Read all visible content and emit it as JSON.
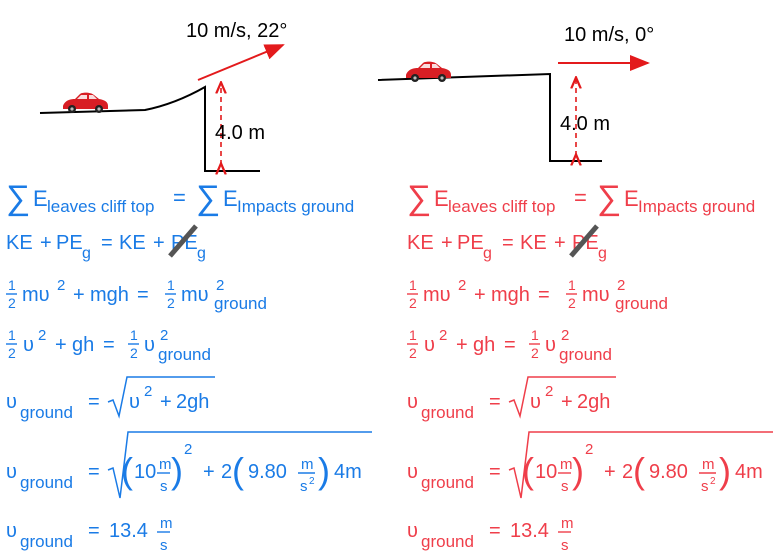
{
  "colors": {
    "blue": "#1a7be6",
    "pink": "#ef3e4a",
    "arrow_red": "#e31a1c",
    "ground": "#000000",
    "strike": "#555555"
  },
  "left_diagram": {
    "velocity_label": "10 m/s, 22°",
    "height_label": "4.0 m",
    "car_icon": "red-car-icon"
  },
  "right_diagram": {
    "velocity_label": "10 m/s, 0°",
    "height_label": "4.0 m",
    "car_icon": "red-car-icon"
  },
  "equations": {
    "energy_sum": {
      "sigma": "∑",
      "E": "E",
      "leaves": "leaves cliff top",
      "eq": "=",
      "impacts": "Impacts ground"
    },
    "ke_pe": {
      "ke1": "KE",
      "plus1": "+",
      "pe1": "PE",
      "g1": "g",
      "eq": "=",
      "ke2": "KE",
      "plus2": "+",
      "pe2": "PE",
      "g2": "g"
    },
    "frac_half": {
      "num": "1",
      "den": "2"
    },
    "mass_eq": {
      "mv": "mυ",
      "sq": "2",
      "plus": "+",
      "mgh": "mgh",
      "eq": "=",
      "ground": "ground"
    },
    "vel_eq": {
      "v": "υ",
      "sq": "2",
      "plus": "+",
      "gh": "gh",
      "eq": "=",
      "ground": "ground"
    },
    "solve": {
      "v": "υ",
      "ground": "ground",
      "eq": "=",
      "inner": "υ",
      "sq": "2",
      "plus": "+",
      "twogh": "2gh"
    },
    "subst": {
      "v": "υ",
      "ground": "ground",
      "eq": "=",
      "ten": "10",
      "m": "m",
      "s": "s",
      "sq": "2",
      "plus": "+",
      "two": "2",
      "g": "9.80",
      "m2": "m",
      "s2": "s",
      "s2exp": "2",
      "fourm": "4m"
    },
    "result": {
      "v": "υ",
      "ground": "ground",
      "eq": "=",
      "value": "13.4",
      "m": "m",
      "s": "s"
    }
  }
}
